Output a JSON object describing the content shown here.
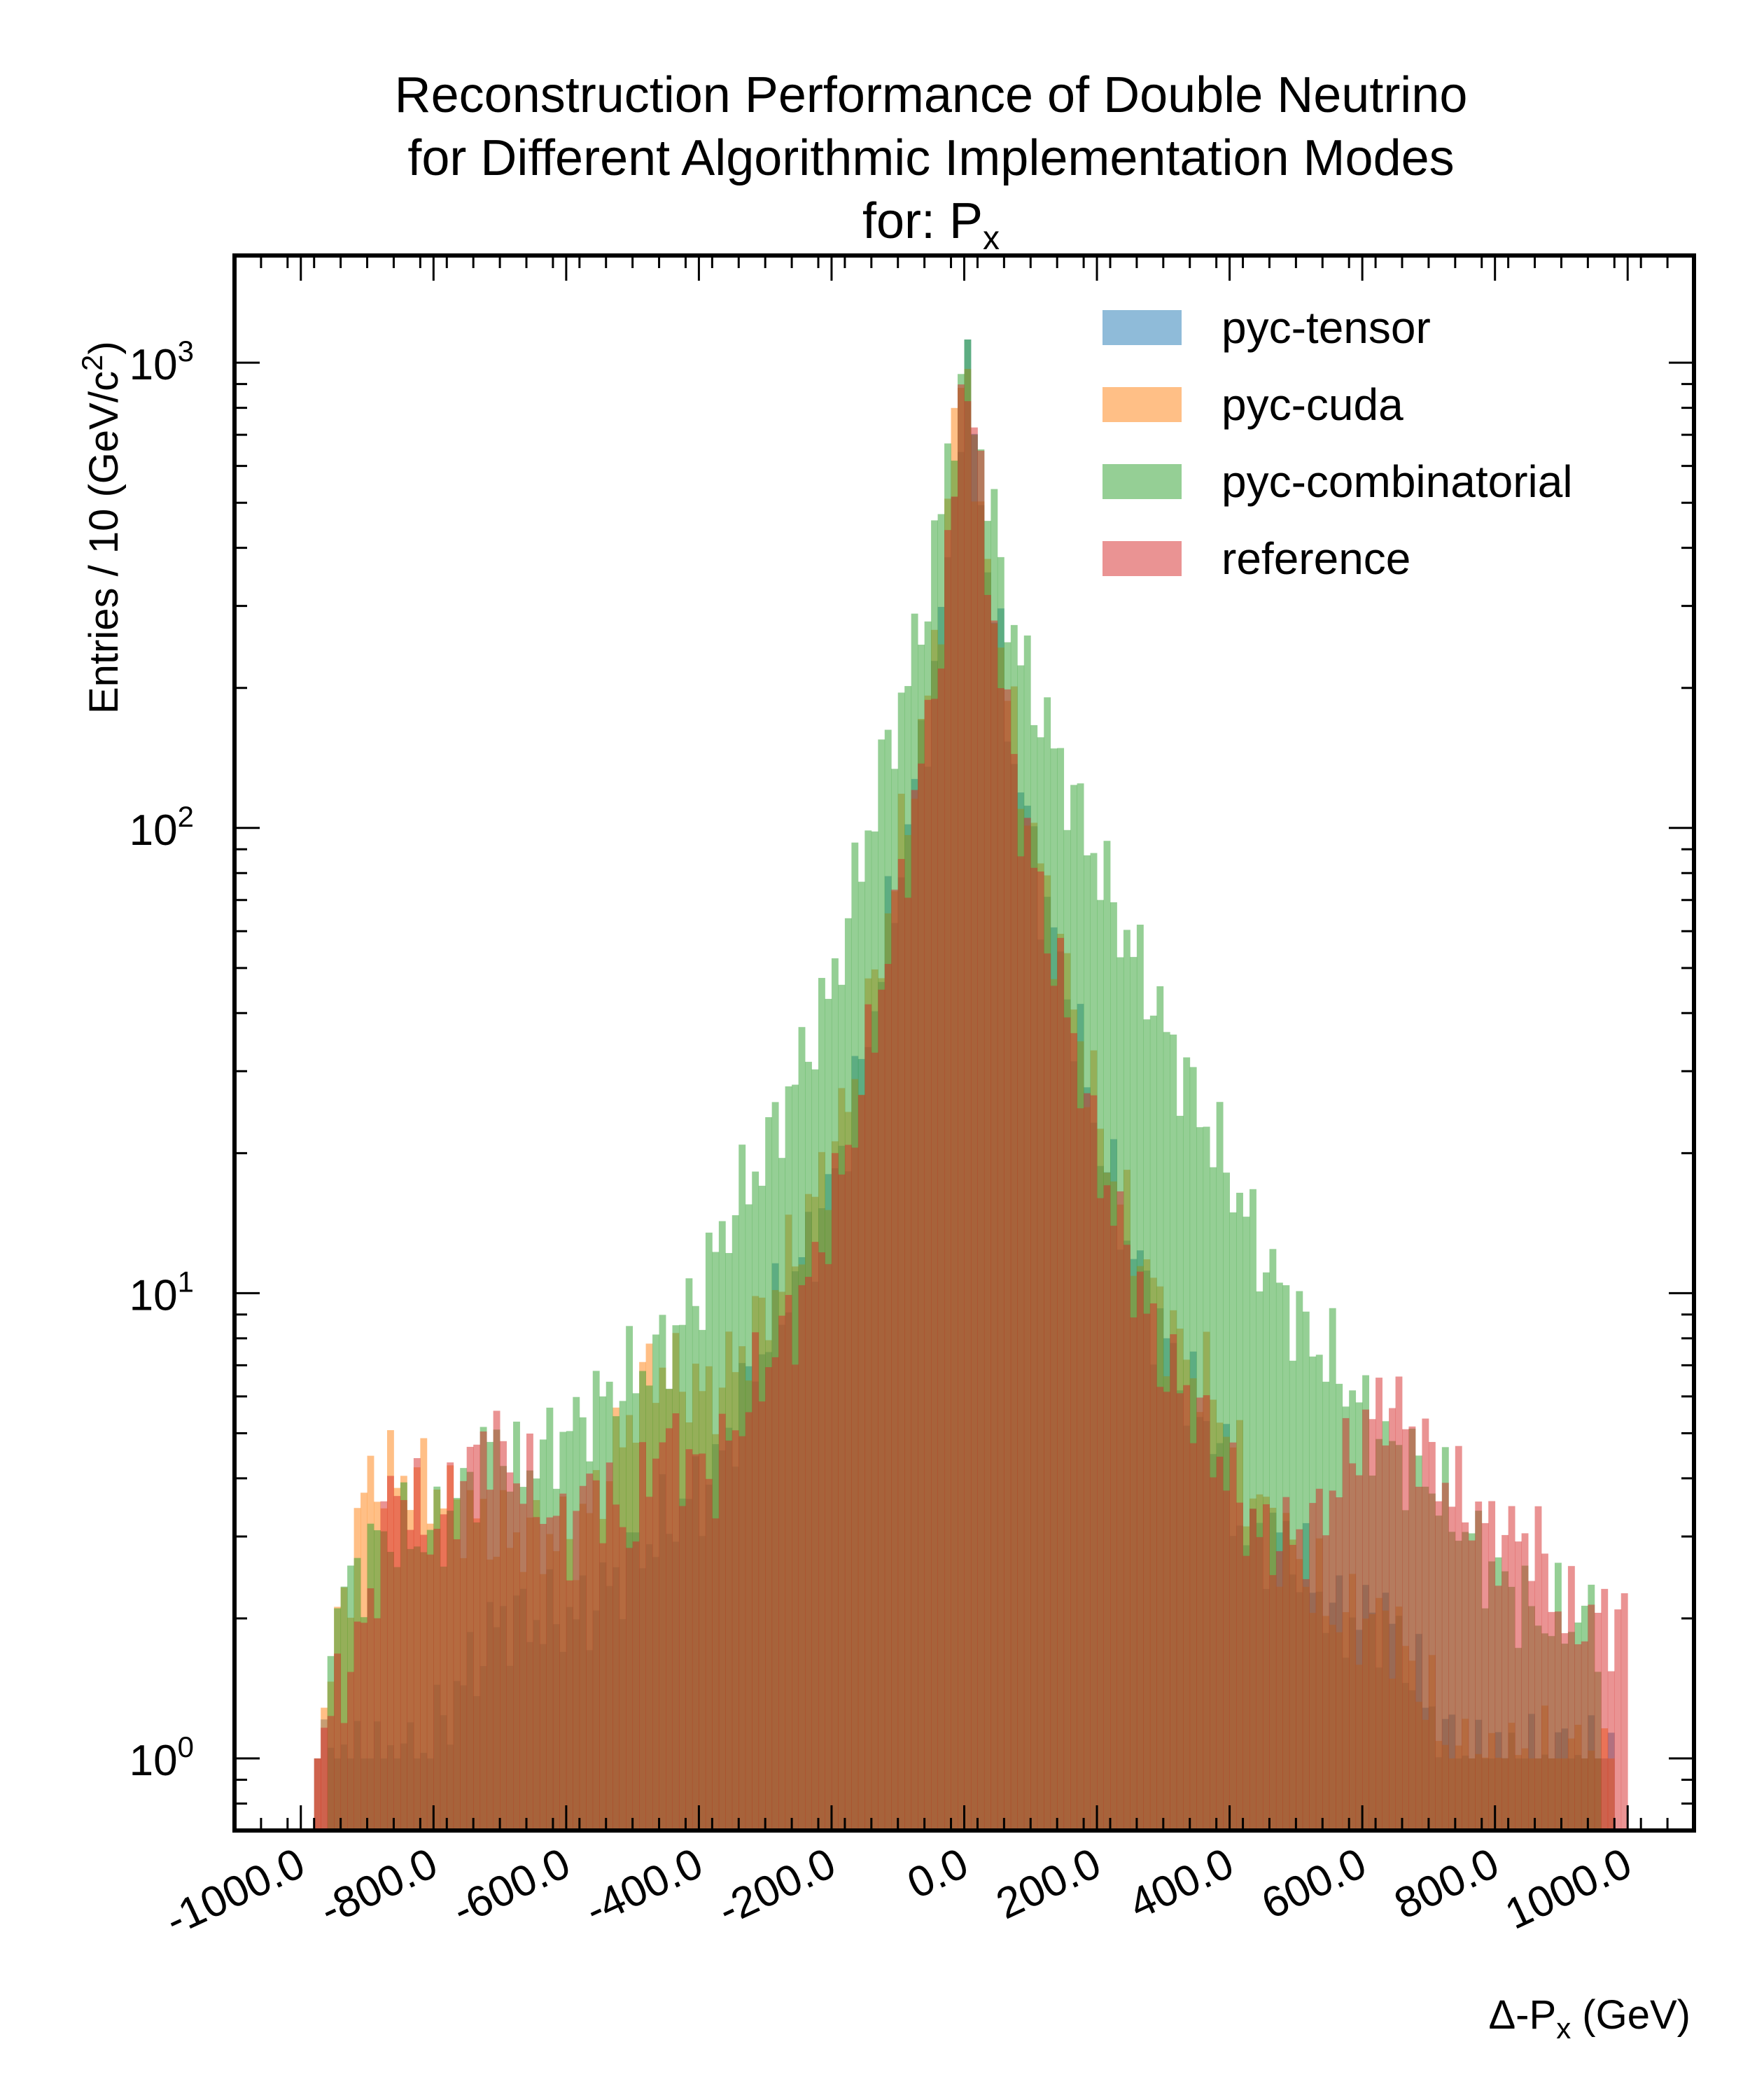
{
  "chart_data": {
    "type": "histogram",
    "title_lines": [
      "Reconstruction Performance of Double Neutrino",
      "for Different Algorithmic Implementation Modes",
      "for: P",
      "x"
    ],
    "xlabel": [
      "Δ-P",
      "x",
      " (GeV)"
    ],
    "ylabel": [
      "Entries  / 10 (GeV/c",
      "2",
      ")"
    ],
    "xlim": [
      -1100,
      1100
    ],
    "ylim": [
      0.7,
      1700
    ],
    "yscale": "log",
    "bin_width": 10,
    "xticks": [
      -1000,
      -800,
      -600,
      -400,
      -200,
      0,
      200,
      400,
      600,
      800,
      1000
    ],
    "xtick_labels": [
      "-1000.0",
      "-800.0",
      "-600.0",
      "-400.0",
      "-200.0",
      "0.0",
      "200.0",
      "400.0",
      "600.0",
      "800.0",
      "1000.0"
    ],
    "yticks": [
      1,
      10,
      100,
      1000
    ],
    "ytick_labels": [
      [
        "10",
        "0"
      ],
      [
        "10",
        "1"
      ],
      [
        "10",
        "2"
      ],
      [
        "10",
        "3"
      ]
    ],
    "legend_position": "top-right",
    "series": [
      {
        "name": "pyc-tensor",
        "color": "#1f77b4",
        "opacity": 0.5,
        "x": [
          -980,
          -820,
          -700,
          -580,
          -470,
          -380,
          -300,
          -240,
          -200,
          -160,
          -120,
          -80,
          -60,
          -40,
          -20,
          -10,
          0,
          10,
          20,
          40,
          60,
          80,
          120,
          160,
          200,
          240,
          300,
          340,
          380,
          420,
          480,
          560,
          640,
          740,
          860,
          980
        ],
        "values": [
          1,
          1,
          2,
          2,
          3,
          4,
          8,
          12,
          17,
          28,
          55,
          110,
          160,
          240,
          420,
          650,
          1000,
          800,
          600,
          330,
          200,
          130,
          70,
          42,
          22,
          14,
          8,
          6,
          5,
          3,
          3,
          2,
          2,
          1,
          1,
          1
        ]
      },
      {
        "name": "pyc-cuda",
        "color": "#ff7f0e",
        "opacity": 0.5,
        "x": [
          -980,
          -900,
          -820,
          -700,
          -580,
          -470,
          -380,
          -300,
          -240,
          -200,
          -160,
          -120,
          -80,
          -60,
          -40,
          -20,
          -10,
          0,
          10,
          20,
          40,
          60,
          80,
          120,
          160,
          200,
          240,
          300,
          340,
          380,
          420,
          480,
          560,
          640,
          740,
          860,
          980
        ],
        "values": [
          1,
          4,
          4,
          3,
          3,
          7,
          6,
          9,
          14,
          20,
          30,
          60,
          120,
          170,
          260,
          600,
          800,
          1050,
          900,
          420,
          350,
          220,
          140,
          75,
          45,
          24,
          15,
          9,
          7,
          6,
          4,
          3,
          2,
          2,
          1,
          1,
          1
        ]
      },
      {
        "name": "pyc-combinatorial",
        "color": "#2ca02c",
        "opacity": 0.5,
        "x": [
          -960,
          -880,
          -800,
          -700,
          -680,
          -600,
          -540,
          -480,
          -440,
          -400,
          -350,
          -300,
          -250,
          -200,
          -160,
          -120,
          -80,
          -60,
          -40,
          -20,
          0,
          20,
          40,
          60,
          80,
          120,
          160,
          200,
          240,
          280,
          320,
          360,
          400,
          450,
          520,
          560,
          620,
          700,
          760,
          860,
          960
        ],
        "values": [
          2,
          3,
          3,
          5,
          4,
          5,
          6,
          7,
          8,
          10,
          15,
          20,
          30,
          45,
          80,
          140,
          220,
          300,
          420,
          700,
          1000,
          720,
          480,
          330,
          240,
          170,
          120,
          85,
          60,
          45,
          32,
          24,
          18,
          12,
          8,
          7,
          5,
          4,
          3,
          2,
          2
        ]
      },
      {
        "name": "reference",
        "color": "#d62728",
        "opacity": 0.5,
        "x": [
          -980,
          -900,
          -860,
          -800,
          -720,
          -600,
          -560,
          -500,
          -460,
          -380,
          -300,
          -240,
          -200,
          -160,
          -120,
          -80,
          -60,
          -40,
          -20,
          -10,
          0,
          10,
          20,
          40,
          60,
          80,
          120,
          160,
          200,
          240,
          300,
          340,
          400,
          440,
          520,
          600,
          640,
          720,
          800,
          860,
          900,
          980,
          1000
        ],
        "values": [
          1,
          2,
          4,
          3,
          5,
          3,
          4,
          3,
          5,
          4,
          7,
          10,
          15,
          25,
          50,
          100,
          150,
          230,
          400,
          700,
          1100,
          850,
          600,
          320,
          190,
          120,
          65,
          38,
          20,
          13,
          7,
          6,
          4,
          3,
          3,
          5,
          6,
          4,
          3,
          3,
          2,
          2,
          2
        ]
      }
    ]
  }
}
